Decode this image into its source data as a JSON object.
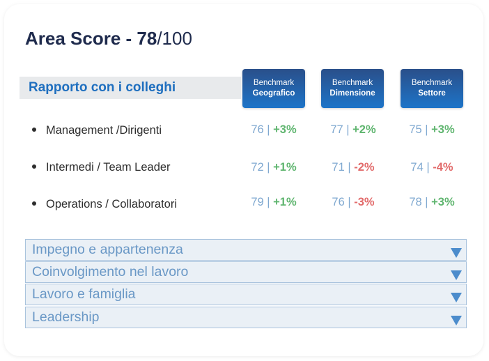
{
  "header": {
    "title_prefix": "Area Score - 78",
    "title_suffix": "/100"
  },
  "section": {
    "title": "Rapporto con i colleghi"
  },
  "benchmarks": [
    {
      "line1": "Benchmark",
      "line2": "Geografico"
    },
    {
      "line1": "Benchmark",
      "line2": "Dimensione"
    },
    {
      "line1": "Benchmark",
      "line2": "Settore"
    }
  ],
  "rows": [
    {
      "label": "Management /Dirigenti",
      "cells": [
        {
          "value": "76",
          "delta": "+3%",
          "trend": "positive"
        },
        {
          "value": "77",
          "delta": "+2%",
          "trend": "positive"
        },
        {
          "value": "75",
          "delta": "+3%",
          "trend": "positive"
        }
      ]
    },
    {
      "label": "Intermedi / Team Leader",
      "cells": [
        {
          "value": "72",
          "delta": "+1%",
          "trend": "positive"
        },
        {
          "value": "71",
          "delta": "-2%",
          "trend": "negative"
        },
        {
          "value": "74",
          "delta": "-4%",
          "trend": "negative"
        }
      ]
    },
    {
      "label": "Operations / Collaboratori",
      "cells": [
        {
          "value": "79",
          "delta": "+1%",
          "trend": "positive"
        },
        {
          "value": "76",
          "delta": "-3%",
          "trend": "negative"
        },
        {
          "value": "78",
          "delta": "+3%",
          "trend": "positive"
        }
      ]
    }
  ],
  "separator": "|",
  "accordions": [
    {
      "label": "Impegno e appartenenza",
      "icon": "triangle-down-icon"
    },
    {
      "label": "Coinvolgimento nel lavoro",
      "icon": "triangle-down-icon"
    },
    {
      "label": "Lavoro e famiglia",
      "icon": "triangle-down-icon"
    },
    {
      "label": "Leadership",
      "icon": "triangle-down-icon"
    }
  ],
  "colors": {
    "title": "#1f2b4d",
    "section_title": "#1f6fbf",
    "value": "#7fa8d0",
    "positive": "#5fb56f",
    "negative": "#e26b6b",
    "benchmark_top": "#2a4f8a",
    "benchmark_bottom": "#1d74c8",
    "accordion_text": "#6a98c6",
    "accordion_arrow": "#4c8ccc"
  }
}
